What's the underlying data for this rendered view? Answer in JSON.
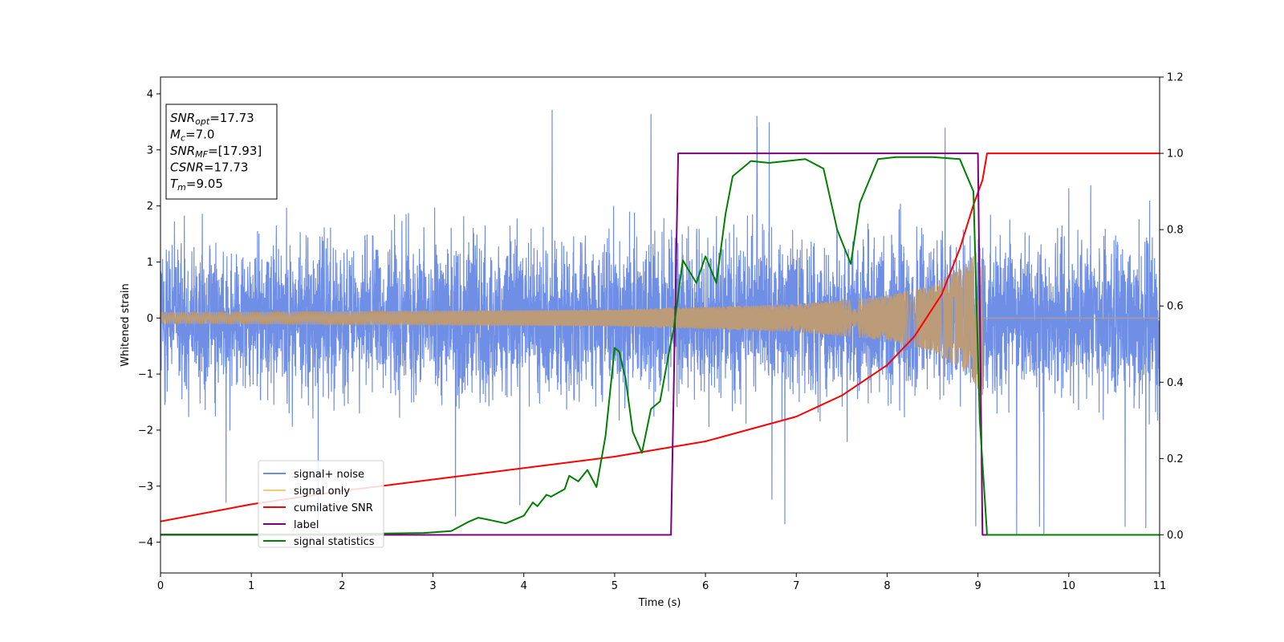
{
  "chart_data": {
    "type": "line",
    "xlabel": "Time (s)",
    "ylabel": "Whitened strain",
    "xlim": [
      0,
      11
    ],
    "ylim_left": [
      -4.55,
      4.3
    ],
    "ylim_right": [
      -0.1,
      1.2
    ],
    "xticks": [
      "0",
      "1",
      "2",
      "3",
      "4",
      "5",
      "6",
      "7",
      "8",
      "9",
      "10",
      "11"
    ],
    "yticks_left": [
      "4",
      "3",
      "2",
      "1",
      "0",
      "−1",
      "−2",
      "−3",
      "−4"
    ],
    "yticks_right": [
      "1.2",
      "1.0",
      "0.8",
      "0.6",
      "0.4",
      "0.2",
      "0.0"
    ],
    "colors": {
      "noise": "#6f8ee6",
      "signal": "#f5c97a",
      "overlap": "#bc9b78",
      "cumsnr": "#ff0000",
      "label": "#800080",
      "stat": "#008000"
    },
    "annotation": [
      {
        "sym": "SNR",
        "sub": "opt",
        "val": "=17.73"
      },
      {
        "sym": "M",
        "sub": "c",
        "val": "=7.0"
      },
      {
        "sym": "SNR",
        "sub": "MF",
        "val": "=[17.93]"
      },
      {
        "sym": "CSNR",
        "sub": "",
        "val": "=17.73"
      },
      {
        "sym": "T",
        "sub": "m",
        "val": "=9.05"
      }
    ],
    "series": [
      {
        "name": "signal+ noise",
        "axis": "left",
        "kind": "noise",
        "x_range": [
          0,
          11
        ],
        "amplitude_range": [
          -4.1,
          3.9
        ]
      },
      {
        "name": "signal only",
        "axis": "left",
        "kind": "chirp",
        "merger_time": 9.05,
        "amplitude": [
          [
            0,
            0.1
          ],
          [
            5,
            0.15
          ],
          [
            7,
            0.25
          ],
          [
            8,
            0.4
          ],
          [
            8.5,
            0.6
          ],
          [
            8.9,
            1.0
          ],
          [
            9.05,
            1.4
          ]
        ]
      },
      {
        "name": "cumilative SNR",
        "axis": "right",
        "x": [
          0,
          1,
          2,
          3,
          4,
          5,
          6,
          7,
          7.5,
          8,
          8.3,
          8.6,
          8.8,
          8.95,
          9.05,
          9.1,
          11
        ],
        "values": [
          0.035,
          0.08,
          0.115,
          0.145,
          0.175,
          0.205,
          0.245,
          0.31,
          0.365,
          0.445,
          0.52,
          0.63,
          0.75,
          0.865,
          0.93,
          1.0,
          1.0
        ]
      },
      {
        "name": "label",
        "axis": "right",
        "x": [
          0,
          5.62,
          5.7,
          9.0,
          9.05,
          11
        ],
        "values": [
          0,
          0,
          1,
          1,
          0,
          0
        ]
      },
      {
        "name": "signal statistics",
        "axis": "right",
        "x": [
          0,
          0.5,
          1,
          2,
          2.9,
          3.2,
          3.4,
          3.5,
          3.6,
          3.8,
          4.0,
          4.1,
          4.15,
          4.25,
          4.3,
          4.45,
          4.5,
          4.6,
          4.7,
          4.8,
          4.9,
          5.0,
          5.05,
          5.12,
          5.2,
          5.3,
          5.4,
          5.5,
          5.6,
          5.65,
          5.75,
          5.9,
          6.0,
          6.12,
          6.22,
          6.3,
          6.4,
          6.5,
          6.7,
          6.9,
          7.1,
          7.3,
          7.45,
          7.6,
          7.7,
          7.9,
          8.1,
          8.3,
          8.5,
          8.8,
          8.95,
          9.02,
          9.1,
          11
        ],
        "values": [
          0.001,
          0.001,
          0.001,
          0.002,
          0.005,
          0.01,
          0.035,
          0.045,
          0.04,
          0.03,
          0.05,
          0.085,
          0.075,
          0.105,
          0.1,
          0.12,
          0.155,
          0.14,
          0.17,
          0.125,
          0.26,
          0.49,
          0.48,
          0.41,
          0.27,
          0.215,
          0.33,
          0.35,
          0.48,
          0.54,
          0.72,
          0.66,
          0.73,
          0.66,
          0.84,
          0.94,
          0.96,
          0.98,
          0.975,
          0.98,
          0.985,
          0.96,
          0.8,
          0.71,
          0.87,
          0.985,
          0.99,
          0.99,
          0.99,
          0.985,
          0.9,
          0.3,
          0.0,
          0.0
        ]
      }
    ],
    "legend": {
      "placement": "lower-left",
      "entries": [
        "signal+ noise",
        "signal only",
        "cumilative SNR",
        "label",
        "signal statistics"
      ]
    },
    "grid": false
  }
}
